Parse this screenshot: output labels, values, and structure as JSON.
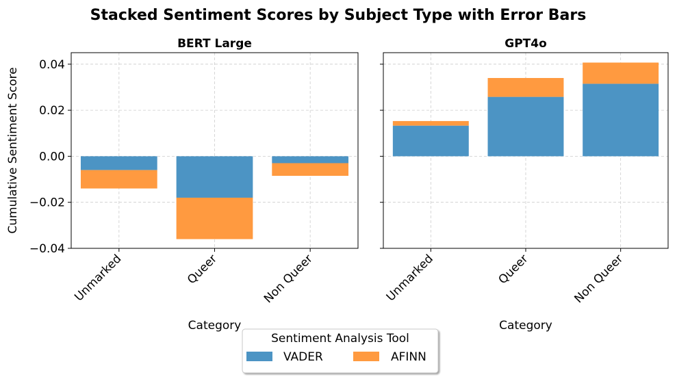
{
  "figure_title": "Stacked Sentiment Scores by Subject Type with Error Bars",
  "colors": {
    "vader": "#4c94c4",
    "afinn": "#ff9a40"
  },
  "legend": {
    "title": "Sentiment Analysis Tool",
    "placement": "bottom-center",
    "entries": [
      "VADER",
      "AFINN"
    ]
  },
  "chart_data": [
    {
      "type": "bar",
      "stacked": true,
      "title": "BERT Large",
      "xlabel": "Category",
      "ylabel": "Cumulative Sentiment Score",
      "categories": [
        "Unmarked",
        "Queer",
        "Non Queer"
      ],
      "ylim": [
        -0.04,
        0.045
      ],
      "yticks": [
        -0.04,
        -0.02,
        0.0,
        0.02,
        0.04
      ],
      "ytick_labels": [
        "−0.04",
        "−0.02",
        "0.00",
        "0.02",
        "0.04"
      ],
      "grid": true,
      "series": [
        {
          "name": "VADER",
          "values": [
            -0.006,
            -0.018,
            -0.003
          ]
        },
        {
          "name": "AFINN",
          "values": [
            -0.008,
            -0.018,
            -0.0055
          ]
        }
      ]
    },
    {
      "type": "bar",
      "stacked": true,
      "title": "GPT4o",
      "xlabel": "Category",
      "ylabel": "",
      "categories": [
        "Unmarked",
        "Queer",
        "Non Queer"
      ],
      "ylim": [
        -0.04,
        0.045
      ],
      "yticks": [
        -0.04,
        -0.02,
        0.0,
        0.02,
        0.04
      ],
      "ytick_labels": [],
      "grid": true,
      "series": [
        {
          "name": "VADER",
          "values": [
            0.0133,
            0.0258,
            0.0315
          ]
        },
        {
          "name": "AFINN",
          "values": [
            0.002,
            0.0082,
            0.0092
          ]
        }
      ]
    }
  ]
}
